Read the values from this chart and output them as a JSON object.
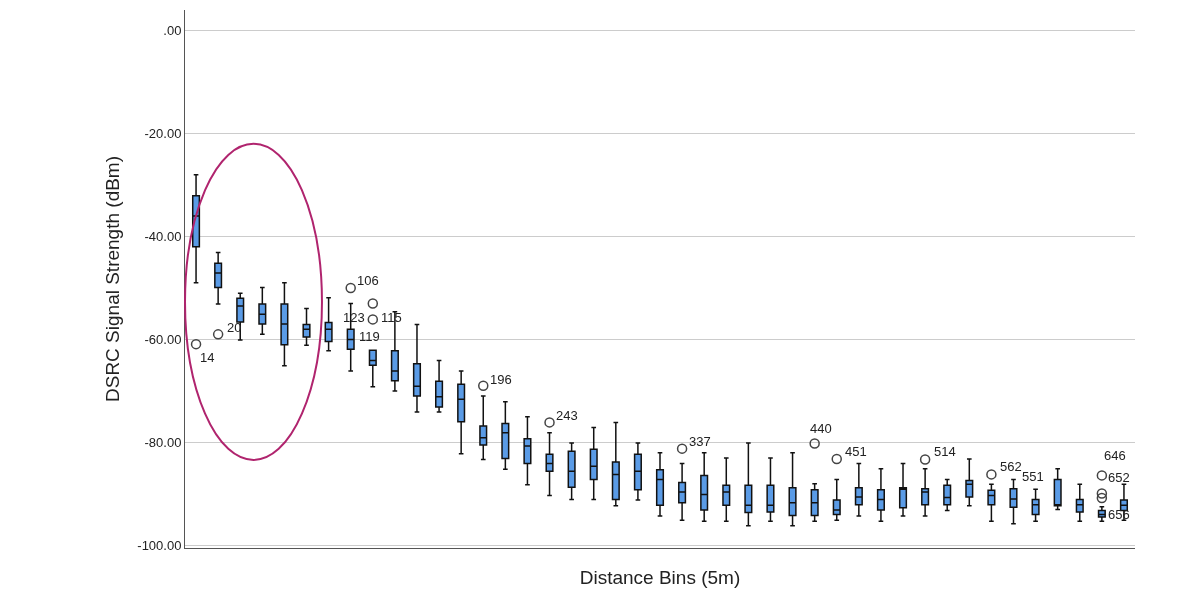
{
  "chart_data": {
    "type": "box",
    "xlabel": "Distance Bins (5m)",
    "ylabel": "DSRC Signal Strength (dBm)",
    "color": "#5a9be6",
    "grid": "y",
    "tick_labels": "y",
    "ylim": [
      -100.5,
      4
    ],
    "yticks": [
      {
        "value": 0,
        "label": ".00"
      },
      {
        "value": -20,
        "label": "-20.00"
      },
      {
        "value": -40,
        "label": "-40.00"
      },
      {
        "value": -60,
        "label": "-60.00"
      },
      {
        "value": -80,
        "label": "-80.00"
      },
      {
        "value": -100,
        "label": "-100.00"
      }
    ],
    "categories": [
      null,
      null,
      null,
      null,
      null,
      null,
      null,
      null,
      null,
      null,
      null,
      null,
      null,
      null,
      null,
      null,
      null,
      null,
      null,
      null,
      null,
      null,
      null,
      null,
      null,
      null,
      null,
      null,
      null,
      null,
      null,
      null,
      null,
      null,
      null,
      null,
      null,
      null,
      null,
      null,
      null,
      null,
      null
    ],
    "boxes": [
      {
        "low": -49.0,
        "q1": -42.0,
        "median": -36.0,
        "q3": -32.1,
        "high": -28.0,
        "outliers": [
          -60.9
        ]
      },
      {
        "low": -53.1,
        "q1": -49.9,
        "median": -47.1,
        "q3": -45.2,
        "high": -43.1,
        "outliers": [
          -59.0
        ]
      },
      {
        "low": -60.1,
        "q1": -56.6,
        "median": -53.5,
        "q3": -52.0,
        "high": -51.0
      },
      {
        "low": -59.0,
        "q1": -57.0,
        "median": -55.1,
        "q3": -53.1,
        "high": -49.9
      },
      {
        "low": -65.1,
        "q1": -61.0,
        "median": -57.0,
        "q3": -53.1,
        "high": -49.0
      },
      {
        "low": -61.1,
        "q1": -59.5,
        "median": -58.0,
        "q3": -57.1,
        "high": -54.0
      },
      {
        "low": -62.2,
        "q1": -60.4,
        "median": -58.0,
        "q3": -56.7,
        "high": -51.9
      },
      {
        "low": -66.1,
        "q1": -61.9,
        "median": -60.0,
        "q3": -58.0,
        "high": -53.0,
        "outliers": [
          -50.0
        ]
      },
      {
        "low": -69.2,
        "q1": -65.0,
        "median": -64.1,
        "q3": -62.1,
        "high": -62.1,
        "outliers": [
          -53.0,
          -56.1
        ]
      },
      {
        "low": -70.0,
        "q1": -68.0,
        "median": -66.1,
        "q3": -62.2,
        "high": -54.6
      },
      {
        "low": -74.1,
        "q1": -71.0,
        "median": -69.1,
        "q3": -64.7,
        "high": -57.1
      },
      {
        "low": -74.1,
        "q1": -73.1,
        "median": -71.1,
        "q3": -68.1,
        "high": -64.1
      },
      {
        "low": -82.2,
        "q1": -76.0,
        "median": -71.6,
        "q3": -68.7,
        "high": -66.1
      },
      {
        "low": -83.3,
        "q1": -80.5,
        "median": -79.1,
        "q3": -76.8,
        "high": -71.0,
        "outliers": [
          -69.0
        ]
      },
      {
        "low": -85.2,
        "q1": -83.1,
        "median": -78.1,
        "q3": -76.3,
        "high": -72.1
      },
      {
        "low": -88.2,
        "q1": -84.1,
        "median": -80.7,
        "q3": -79.3,
        "high": -75.0
      },
      {
        "low": -90.3,
        "q1": -85.6,
        "median": -84.1,
        "q3": -82.3,
        "high": -78.1,
        "outliers": [
          -76.1
        ]
      },
      {
        "low": -91.1,
        "q1": -88.7,
        "median": -85.6,
        "q3": -81.7,
        "high": -80.1
      },
      {
        "low": -91.1,
        "q1": -87.2,
        "median": -84.6,
        "q3": -81.3,
        "high": -77.1
      },
      {
        "low": -92.3,
        "q1": -91.1,
        "median": -86.2,
        "q3": -83.8,
        "high": -76.1
      },
      {
        "low": -91.2,
        "q1": -89.2,
        "median": -85.6,
        "q3": -82.3,
        "high": -80.1
      },
      {
        "low": -94.3,
        "q1": -92.2,
        "median": -87.2,
        "q3": -85.3,
        "high": -82.0
      },
      {
        "low": -95.1,
        "q1": -91.7,
        "median": -89.6,
        "q3": -87.8,
        "high": -84.1,
        "outliers": [
          -81.2
        ]
      },
      {
        "low": -95.3,
        "q1": -93.1,
        "median": -90.1,
        "q3": -86.4,
        "high": -82.0
      },
      {
        "low": -95.3,
        "q1": -92.2,
        "median": -89.6,
        "q3": -88.3,
        "high": -83.0
      },
      {
        "low": -96.2,
        "q1": -93.6,
        "median": -92.2,
        "q3": -88.3,
        "high": -80.1
      },
      {
        "low": -95.3,
        "q1": -93.5,
        "median": -92.2,
        "q3": -88.3,
        "high": -83.0
      },
      {
        "low": -96.2,
        "q1": -94.2,
        "median": -91.7,
        "q3": -88.8,
        "high": -82.0
      },
      {
        "low": -95.3,
        "q1": -94.2,
        "median": -91.7,
        "q3": -89.2,
        "high": -88.0,
        "outliers": [
          -80.2
        ]
      },
      {
        "low": -95.1,
        "q1": -94.0,
        "median": -93.1,
        "q3": -91.2,
        "high": -87.2,
        "outliers": [
          -83.2
        ]
      },
      {
        "low": -94.3,
        "q1": -92.1,
        "median": -90.6,
        "q3": -88.8,
        "high": -84.1
      },
      {
        "low": -95.3,
        "q1": -93.1,
        "median": -91.1,
        "q3": -89.2,
        "high": -85.1
      },
      {
        "low": -94.3,
        "q1": -92.7,
        "median": -89.1,
        "q3": -88.8,
        "high": -84.1
      },
      {
        "low": -94.3,
        "q1": -92.1,
        "median": -89.6,
        "q3": -89.0,
        "high": -85.1,
        "outliers": [
          -83.3
        ]
      },
      {
        "low": -93.2,
        "q1": -92.1,
        "median": -90.7,
        "q3": -88.3,
        "high": -87.2
      },
      {
        "low": -92.3,
        "q1": -90.6,
        "median": -88.1,
        "q3": -87.4,
        "high": -83.2
      },
      {
        "low": -95.3,
        "q1": -92.1,
        "median": -90.3,
        "q3": -89.3,
        "high": -88.1,
        "outliers": [
          -86.2
        ]
      },
      {
        "low": -95.8,
        "q1": -92.6,
        "median": -91.0,
        "q3": -89.0,
        "high": -87.2
      },
      {
        "low": -95.3,
        "q1": -94.0,
        "median": -92.1,
        "q3": -91.1,
        "high": -89.1
      },
      {
        "low": -93.0,
        "q1": -92.3,
        "median": -92.1,
        "q3": -87.2,
        "high": -85.1
      },
      {
        "low": -95.3,
        "q1": -93.5,
        "median": -92.1,
        "q3": -91.1,
        "high": -88.1
      },
      {
        "low": -95.3,
        "q1": -94.5,
        "median": -94.0,
        "q3": -93.2,
        "high": -92.5,
        "outliers": [
          -86.4,
          -89.9,
          -90.8
        ]
      },
      {
        "low": -95.1,
        "q1": -93.2,
        "median": -92.2,
        "q3": -91.2,
        "high": -88.1
      }
    ],
    "annotations": [
      "14",
      "20",
      "106",
      "123",
      "115",
      "119",
      "196",
      "243",
      "337",
      "440",
      "451",
      "514",
      "562",
      "551",
      "646",
      "652",
      "656"
    ]
  }
}
